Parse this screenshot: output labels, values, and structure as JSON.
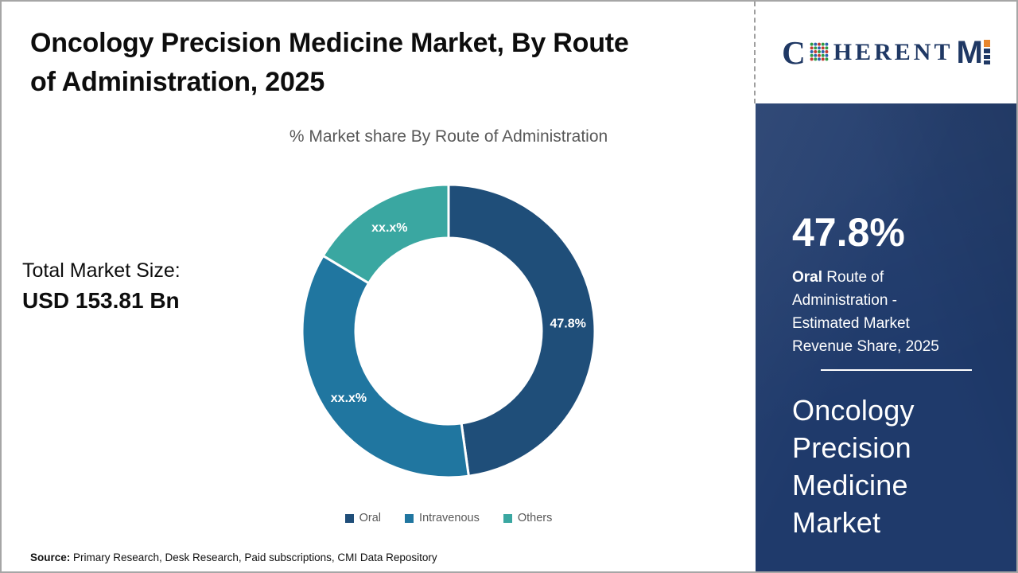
{
  "page": {
    "title_line1": "Oncology Precision Medicine Market, By Route",
    "title_line2": "of Administration, 2025",
    "subtitle": "% Market share By Route of Administration",
    "total_market_size": {
      "label": "Total Market Size:",
      "value": "USD 153.81 Bn"
    },
    "source": {
      "label": "Source:",
      "text": " Primary Research, Desk Research, Paid subscriptions, CMI Data Repository"
    }
  },
  "logo": {
    "part_c": "C",
    "part_herent": "HERENT",
    "part_m": "M",
    "navy": "#1f3864",
    "orange": "#e8862c",
    "globe_dot_colors": [
      "#2e9b44",
      "#c23b32",
      "#2c63ad"
    ]
  },
  "sidebar": {
    "bg_color": "#1f3a6b",
    "stat_value": "47.8%",
    "stat_desc_bold": "Oral",
    "stat_desc_rest": " Route of Administration - Estimated Market Revenue Share, 2025",
    "product_title": "Oncology Precision Medicine Market"
  },
  "chart_data": {
    "type": "donut",
    "title": "% Market share By Route of Administration",
    "categories": [
      "Oral",
      "Intravenous",
      "Others"
    ],
    "values": [
      47.8,
      35.8,
      16.4
    ],
    "displayed_labels": [
      "47.8%",
      "xx.x%",
      "xx.x%"
    ],
    "colors": [
      "#1f4e79",
      "#2076a0",
      "#3aa7a1"
    ],
    "start_angle_deg": 0,
    "outer_radius": 184,
    "inner_radius": 117,
    "separator_color": "#ffffff",
    "label_color": "#ffffff",
    "legend_position": "bottom"
  }
}
